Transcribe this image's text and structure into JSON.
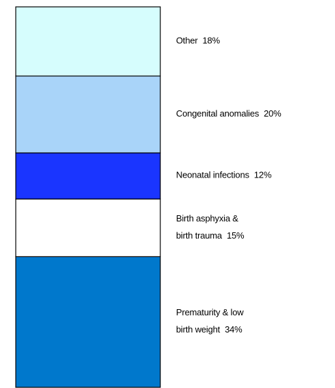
{
  "chart_data": {
    "type": "stacked-bar",
    "series": [
      {
        "name": [
          "Prematurity & low",
          "birth weight"
        ],
        "color": "#0078cc",
        "values": [
          34
        ],
        "value_labels": [
          "34%"
        ]
      },
      {
        "name": [
          "Birth asphyxia &",
          "birth trauma"
        ],
        "color": "#ffffff",
        "values": [
          15
        ],
        "value_labels": [
          "15%"
        ]
      },
      {
        "name": [
          "Neonatal infections"
        ],
        "color": "#1a35ff",
        "values": [
          12
        ],
        "value_labels": [
          "12%"
        ]
      },
      {
        "name": [
          "Congenital anomalies"
        ],
        "color": "#a9d4f9",
        "values": [
          20
        ],
        "value_labels": [
          "20%"
        ]
      },
      {
        "name": [
          "Other"
        ],
        "color": "#d6fdfd",
        "values": [
          18
        ],
        "value_labels": [
          "18%"
        ]
      }
    ]
  }
}
